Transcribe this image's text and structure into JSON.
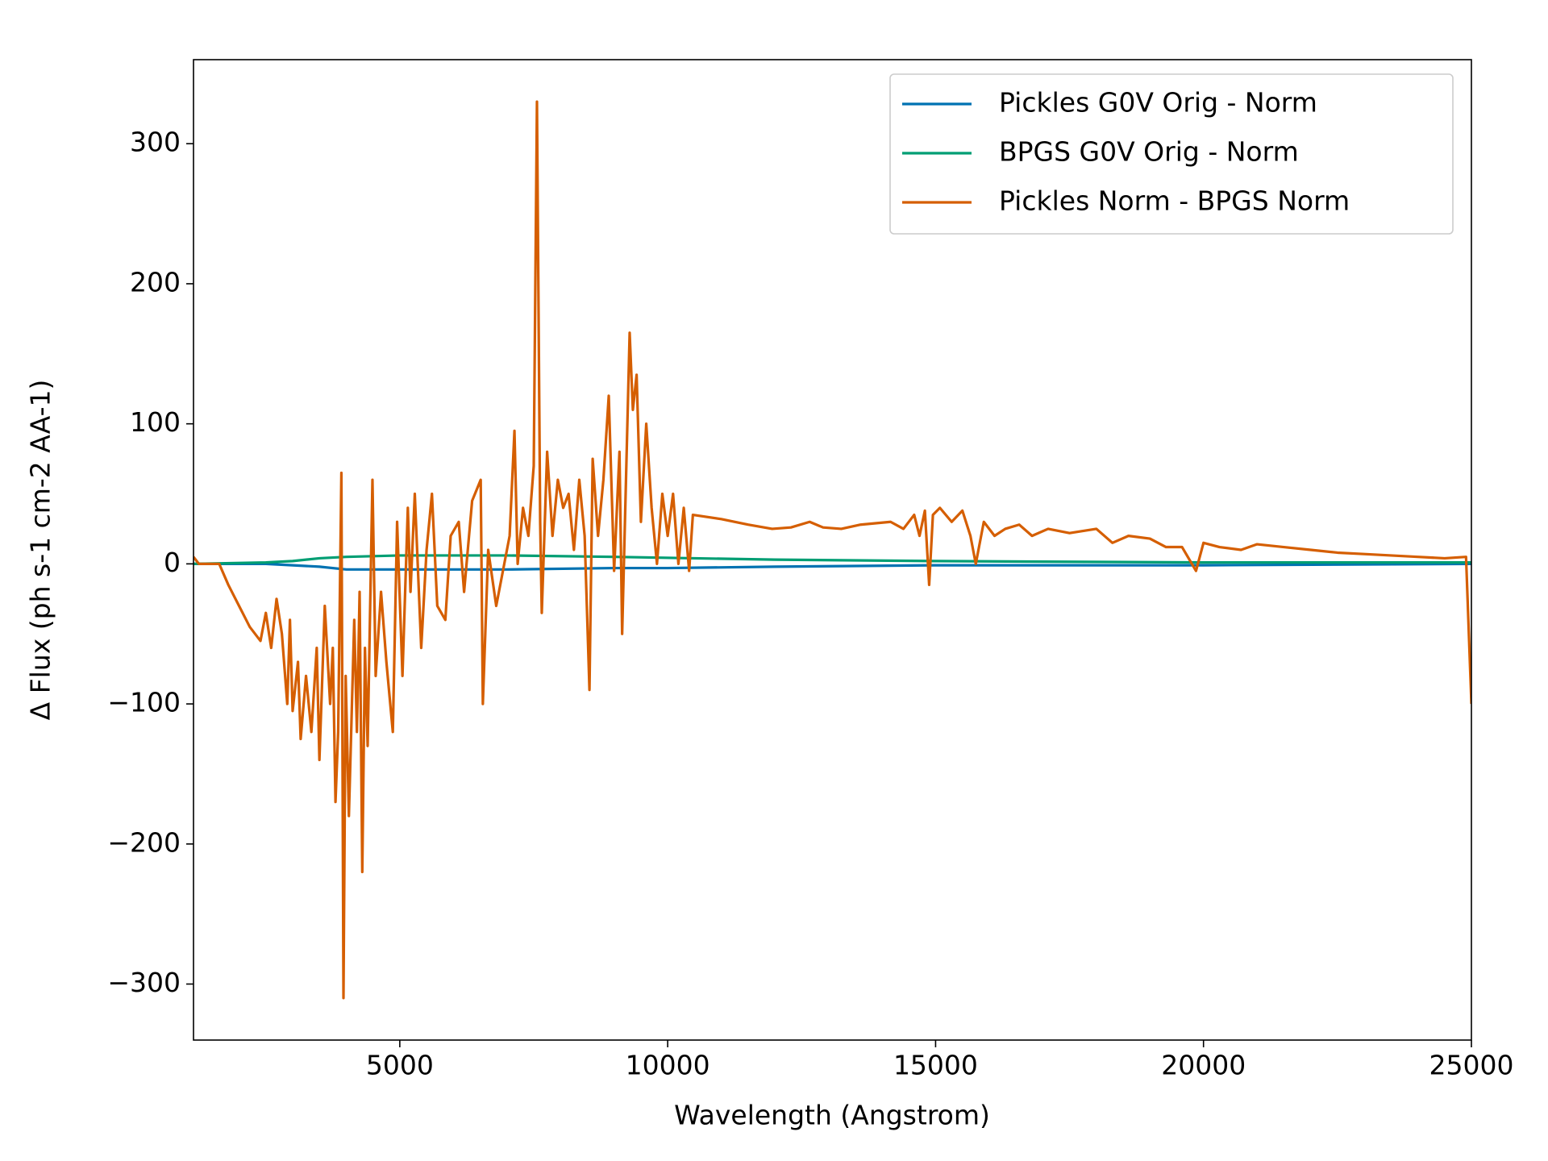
{
  "chart_data": {
    "type": "line",
    "xlabel": "Wavelength (Angstrom)",
    "ylabel": "Δ Flux (ph s-1 cm-2 AA-1)",
    "xlim": [
      1150,
      25000
    ],
    "ylim": [
      -340,
      360
    ],
    "xticks": [
      5000,
      10000,
      15000,
      20000,
      25000
    ],
    "yticks": [
      {
        "value": -300,
        "label": "−300"
      },
      {
        "value": -200,
        "label": "−200"
      },
      {
        "value": -100,
        "label": "−100"
      },
      0,
      100,
      200,
      300
    ],
    "legend": "upper right",
    "series": [
      {
        "name": "Pickles G0V Orig - Norm",
        "color": "#0072b2",
        "x": [
          1150,
          2500,
          3000,
          3500,
          4000,
          5000,
          7000,
          9000,
          10000,
          12000,
          15000,
          20000,
          25000
        ],
        "values": [
          0,
          0,
          -1,
          -2,
          -4,
          -4,
          -4,
          -3,
          -3,
          -2,
          -1,
          -1,
          0
        ]
      },
      {
        "name": "BPGS G0V Orig - Norm",
        "color": "#009e73",
        "x": [
          1150,
          2500,
          3000,
          3500,
          4000,
          5000,
          7000,
          9000,
          10500,
          12000,
          15000,
          20000,
          25000
        ],
        "values": [
          0,
          1,
          2,
          4,
          5,
          6,
          6,
          5,
          4,
          3,
          2,
          1,
          1
        ]
      },
      {
        "name": "Pickles Norm - BPGS Norm",
        "color": "#d55e00",
        "x": [
          1150,
          1250,
          1630,
          1800,
          2000,
          2200,
          2400,
          2500,
          2600,
          2700,
          2800,
          2900,
          2950,
          3000,
          3100,
          3150,
          3250,
          3350,
          3450,
          3500,
          3600,
          3700,
          3750,
          3800,
          3850,
          3910,
          3949,
          3990,
          4050,
          4150,
          4200,
          4250,
          4300,
          4350,
          4400,
          4490,
          4550,
          4650,
          4750,
          4870,
          4950,
          5050,
          5150,
          5200,
          5280,
          5400,
          5500,
          5600,
          5700,
          5850,
          5950,
          6100,
          6200,
          6350,
          6510,
          6550,
          6650,
          6800,
          6950,
          7050,
          7140,
          7200,
          7300,
          7400,
          7500,
          7560,
          7620,
          7650,
          7750,
          7850,
          7950,
          8050,
          8150,
          8250,
          8350,
          8450,
          8540,
          8600,
          8700,
          8800,
          8900,
          9000,
          9100,
          9150,
          9290,
          9350,
          9420,
          9500,
          9600,
          9700,
          9800,
          9900,
          10000,
          10100,
          10200,
          10300,
          10400,
          10470,
          11000,
          11500,
          11950,
          12300,
          12650,
          12900,
          13240,
          13600,
          14160,
          14400,
          14600,
          14700,
          14800,
          14880,
          14950,
          15080,
          15300,
          15500,
          15650,
          15750,
          15900,
          16100,
          16300,
          16560,
          16800,
          17100,
          17500,
          18000,
          18300,
          18600,
          19000,
          19300,
          19600,
          19860,
          20000,
          20300,
          20700,
          21000,
          21500,
          22000,
          22500,
          23000,
          23500,
          24000,
          24500,
          24900,
          25000
        ],
        "values": [
          5,
          0,
          0,
          -15,
          -30,
          -45,
          -55,
          -35,
          -60,
          -25,
          -50,
          -100,
          -40,
          -105,
          -70,
          -125,
          -80,
          -120,
          -60,
          -140,
          -30,
          -100,
          -60,
          -170,
          -120,
          65,
          -310,
          -80,
          -180,
          -40,
          -120,
          -20,
          -220,
          -60,
          -130,
          60,
          -80,
          -20,
          -70,
          -120,
          30,
          -80,
          40,
          -20,
          50,
          -60,
          10,
          50,
          -30,
          -40,
          20,
          30,
          -20,
          45,
          60,
          -100,
          10,
          -30,
          0,
          20,
          95,
          0,
          40,
          20,
          70,
          330,
          30,
          -35,
          80,
          20,
          60,
          40,
          50,
          10,
          60,
          20,
          -90,
          75,
          20,
          60,
          120,
          -5,
          80,
          -50,
          165,
          110,
          135,
          30,
          100,
          40,
          0,
          50,
          20,
          50,
          0,
          40,
          -5,
          35,
          32,
          28,
          25,
          26,
          30,
          26,
          25,
          28,
          30,
          25,
          35,
          20,
          38,
          -15,
          35,
          40,
          30,
          38,
          20,
          0,
          30,
          20,
          25,
          28,
          20,
          25,
          22,
          25,
          15,
          20,
          18,
          12,
          12,
          -5,
          15,
          12,
          10,
          14,
          12,
          10,
          8,
          7,
          6,
          5,
          4,
          5,
          -100
        ]
      }
    ]
  }
}
